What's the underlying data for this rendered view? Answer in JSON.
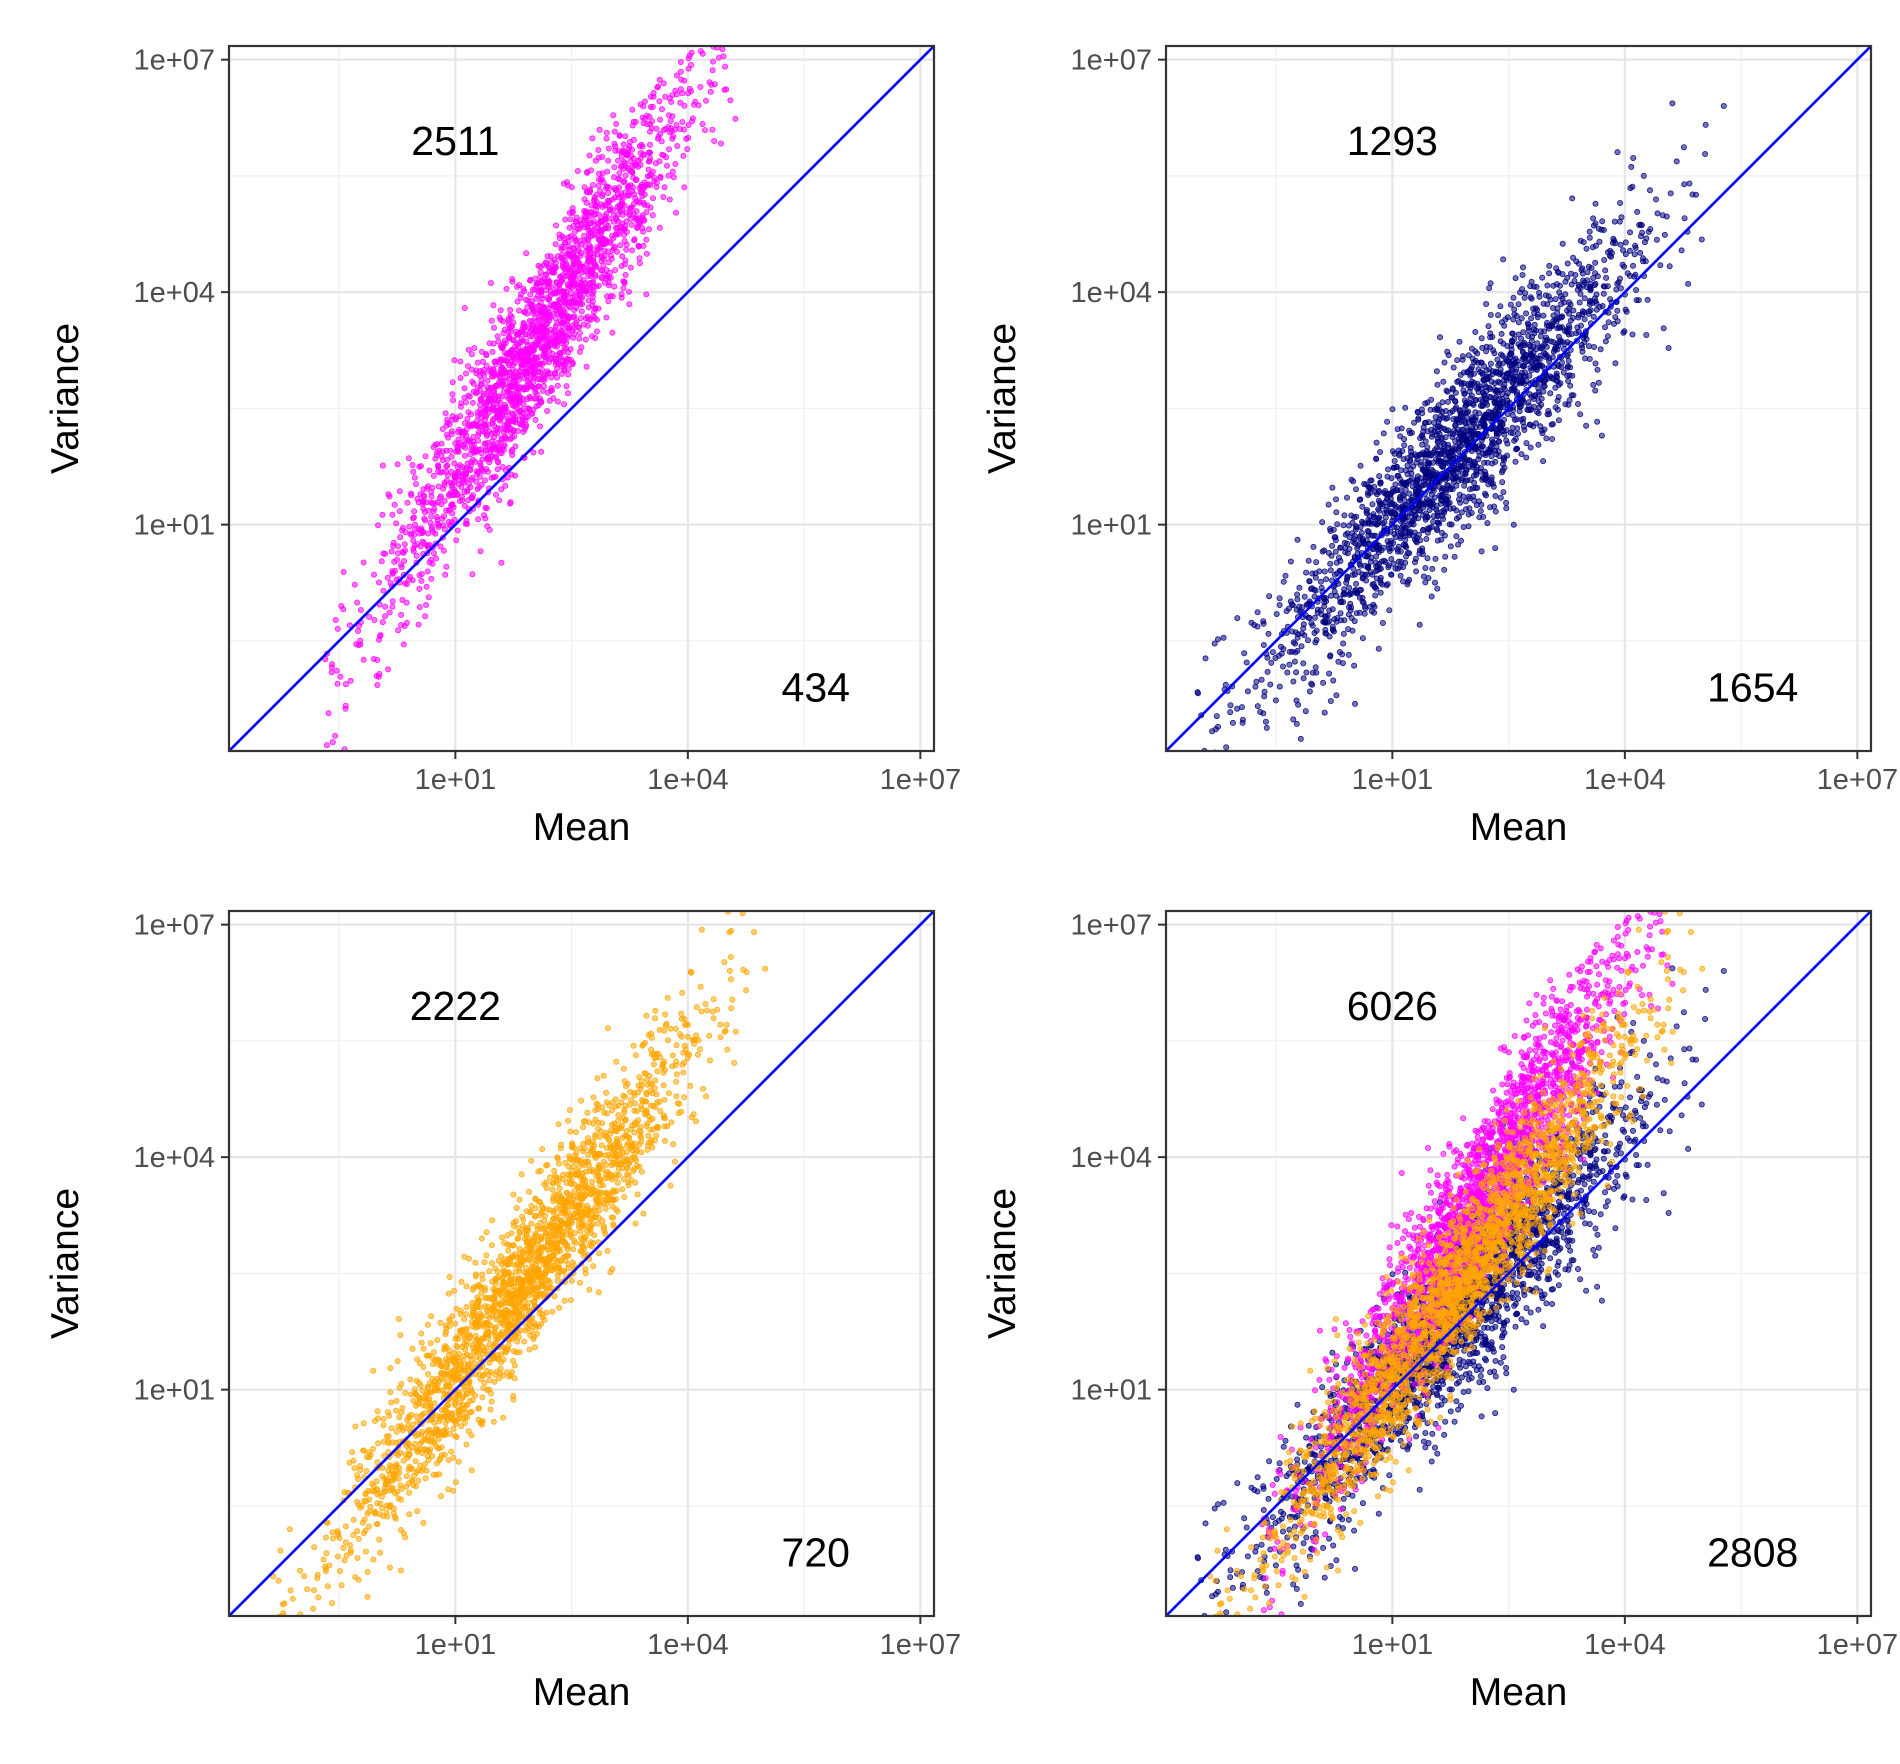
{
  "chart_data": [
    {
      "type": "scatter",
      "xlabel": "Mean",
      "ylabel": "Variance",
      "x_scale": "log10",
      "y_scale": "log10",
      "xlim": [
        0.012,
        15000000.0
      ],
      "ylim": [
        0.012,
        15000000.0
      ],
      "x_ticks": [
        "1e+01",
        "1e+04",
        "1e+07"
      ],
      "y_ticks": [
        "1e+01",
        "1e+04",
        "1e+07"
      ],
      "grid": true,
      "reference_line": {
        "type": "y = x",
        "color": "#0000FF"
      },
      "annotations": [
        {
          "text": "2511",
          "region": "above-line"
        },
        {
          "text": "434",
          "region": "below-line"
        }
      ],
      "series": [
        {
          "color": "#FF00FF",
          "point_count": 2945,
          "trend": {
            "x_range": [
              0.2,
              200000.0
            ],
            "variance_vs_mean_exponent": 1.6,
            "variance_at_mean_1": 1.2,
            "log10_spread": 0.55
          }
        }
      ]
    },
    {
      "type": "scatter",
      "xlabel": "Mean",
      "ylabel": "Variance",
      "x_scale": "log10",
      "y_scale": "log10",
      "xlim": [
        0.012,
        15000000.0
      ],
      "ylim": [
        0.012,
        15000000.0
      ],
      "x_ticks": [
        "1e+01",
        "1e+04",
        "1e+07"
      ],
      "y_ticks": [
        "1e+01",
        "1e+04",
        "1e+07"
      ],
      "grid": true,
      "reference_line": {
        "type": "y = x",
        "color": "#0000FF"
      },
      "annotations": [
        {
          "text": "1293",
          "region": "above-line"
        },
        {
          "text": "1654",
          "region": "below-line"
        }
      ],
      "series": [
        {
          "color": "#000080",
          "point_count": 2947,
          "trend": {
            "x_range": [
              0.03,
              300000.0
            ],
            "variance_vs_mean_exponent": 1.1,
            "variance_at_mean_1": 0.9,
            "log10_spread": 0.55
          }
        }
      ]
    },
    {
      "type": "scatter",
      "xlabel": "Mean",
      "ylabel": "Variance",
      "x_scale": "log10",
      "y_scale": "log10",
      "xlim": [
        0.012,
        15000000.0
      ],
      "ylim": [
        0.012,
        15000000.0
      ],
      "x_ticks": [
        "1e+01",
        "1e+04",
        "1e+07"
      ],
      "y_ticks": [
        "1e+01",
        "1e+04",
        "1e+07"
      ],
      "grid": true,
      "reference_line": {
        "type": "y = x",
        "color": "#0000FF"
      },
      "annotations": [
        {
          "text": "2222",
          "region": "above-line"
        },
        {
          "text": "720",
          "region": "below-line"
        }
      ],
      "series": [
        {
          "color": "#FFA500",
          "point_count": 2942,
          "trend": {
            "x_range": [
              0.04,
              300000.0
            ],
            "variance_vs_mean_exponent": 1.4,
            "variance_at_mean_1": 0.6,
            "log10_spread": 0.5
          }
        }
      ]
    },
    {
      "type": "scatter",
      "xlabel": "Mean",
      "ylabel": "Variance",
      "x_scale": "log10",
      "y_scale": "log10",
      "xlim": [
        0.012,
        15000000.0
      ],
      "ylim": [
        0.012,
        15000000.0
      ],
      "x_ticks": [
        "1e+01",
        "1e+04",
        "1e+07"
      ],
      "y_ticks": [
        "1e+01",
        "1e+04",
        "1e+07"
      ],
      "grid": true,
      "reference_line": {
        "type": "y = x",
        "color": "#0000FF"
      },
      "annotations": [
        {
          "text": "6026",
          "region": "above-line"
        },
        {
          "text": "2808",
          "region": "below-line"
        }
      ],
      "series": [
        {
          "color": "#000080",
          "point_count": 2947,
          "trend": {
            "x_range": [
              0.03,
              300000.0
            ],
            "variance_vs_mean_exponent": 1.1,
            "variance_at_mean_1": 0.9,
            "log10_spread": 0.55
          }
        },
        {
          "color": "#FF00FF",
          "point_count": 2945,
          "trend": {
            "x_range": [
              0.2,
              200000.0
            ],
            "variance_vs_mean_exponent": 1.6,
            "variance_at_mean_1": 1.2,
            "log10_spread": 0.55
          }
        },
        {
          "color": "#FFA500",
          "point_count": 2942,
          "trend": {
            "x_range": [
              0.04,
              300000.0
            ],
            "variance_vs_mean_exponent": 1.4,
            "variance_at_mean_1": 0.6,
            "log10_spread": 0.5
          }
        }
      ]
    }
  ]
}
